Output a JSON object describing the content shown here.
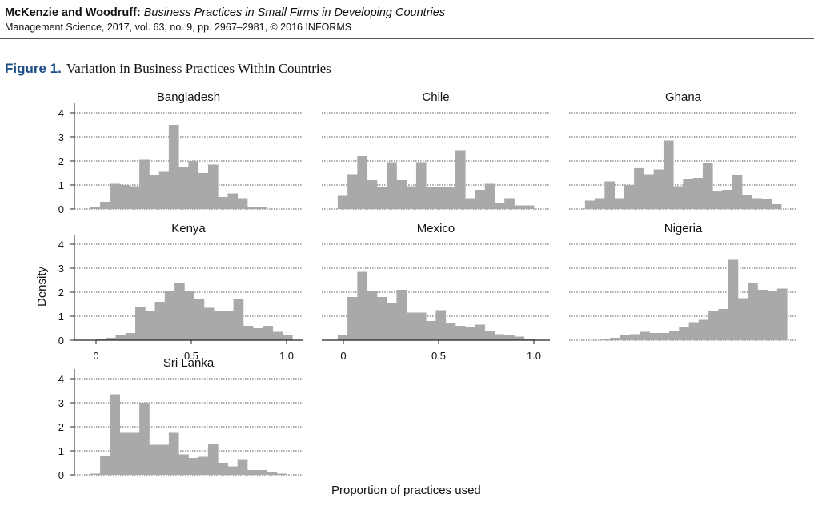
{
  "header": {
    "authors": "McKenzie and Woodruff:",
    "paper_title": "Business Practices in Small Firms in Developing Countries",
    "citation": "Management Science, 2017, vol. 63, no. 9, pp. 2967–2981, © 2016 INFORMS"
  },
  "figure": {
    "label": "Figure 1.",
    "title": "Variation in Business Practices Within Countries"
  },
  "chart_data": {
    "type": "bar",
    "ylabel": "Density",
    "xlabel": "Proportion of practices used",
    "ylim": [
      0,
      4.4
    ],
    "yticks": [
      0,
      1,
      2,
      3,
      4
    ],
    "xticks": [
      0,
      0.5,
      1.0
    ],
    "xtick_labels": [
      "0",
      "0.5",
      "1.0"
    ],
    "bar_color": "#a9a9a9",
    "grid": "dotted horizontal",
    "panels": [
      {
        "name": "Bangladesh",
        "x_start": -0.03,
        "bin_width": 0.0515,
        "values": [
          0.1,
          0.3,
          1.05,
          1.0,
          0.95,
          2.05,
          1.4,
          1.55,
          3.5,
          1.75,
          2.0,
          1.5,
          1.85,
          0.5,
          0.65,
          0.45,
          0.1,
          0.08
        ]
      },
      {
        "name": "Chile",
        "x_start": -0.03,
        "bin_width": 0.0515,
        "values": [
          0.55,
          1.45,
          2.2,
          1.2,
          0.9,
          1.95,
          1.2,
          0.95,
          1.95,
          0.9,
          0.9,
          0.9,
          2.45,
          0.45,
          0.8,
          1.05,
          0.25,
          0.45,
          0.15,
          0.15
        ]
      },
      {
        "name": "Ghana",
        "x_start": -0.03,
        "bin_width": 0.0515,
        "values": [
          0.35,
          0.45,
          1.15,
          0.45,
          1.0,
          1.7,
          1.45,
          1.65,
          2.85,
          0.95,
          1.25,
          1.3,
          1.9,
          0.75,
          0.8,
          1.4,
          0.6,
          0.45,
          0.4,
          0.2
        ]
      },
      {
        "name": "Kenya",
        "x_start": 0.0,
        "bin_width": 0.0515,
        "values": [
          0.05,
          0.1,
          0.2,
          0.3,
          1.4,
          1.2,
          1.6,
          2.05,
          2.4,
          2.05,
          1.7,
          1.35,
          1.2,
          1.2,
          1.7,
          0.6,
          0.5,
          0.6,
          0.35,
          0.2
        ]
      },
      {
        "name": "Mexico",
        "x_start": -0.03,
        "bin_width": 0.0515,
        "values": [
          0.2,
          1.8,
          2.85,
          2.05,
          1.8,
          1.55,
          2.1,
          1.15,
          1.15,
          0.8,
          1.25,
          0.7,
          0.6,
          0.55,
          0.65,
          0.4,
          0.25,
          0.2,
          0.15,
          0.05
        ]
      },
      {
        "name": "Nigeria",
        "x_start": 0.0,
        "bin_width": 0.0515,
        "values": [
          0.02,
          0.05,
          0.1,
          0.2,
          0.25,
          0.35,
          0.3,
          0.3,
          0.4,
          0.55,
          0.75,
          0.85,
          1.2,
          1.3,
          3.35,
          1.75,
          2.4,
          2.1,
          2.05,
          2.15
        ]
      },
      {
        "name": "Sri Lanka",
        "x_start": -0.03,
        "bin_width": 0.0515,
        "values": [
          0.05,
          0.8,
          3.35,
          1.75,
          1.75,
          3.0,
          1.25,
          1.25,
          1.75,
          0.85,
          0.7,
          0.75,
          1.3,
          0.5,
          0.35,
          0.65,
          0.2,
          0.2,
          0.1,
          0.05
        ]
      }
    ]
  }
}
